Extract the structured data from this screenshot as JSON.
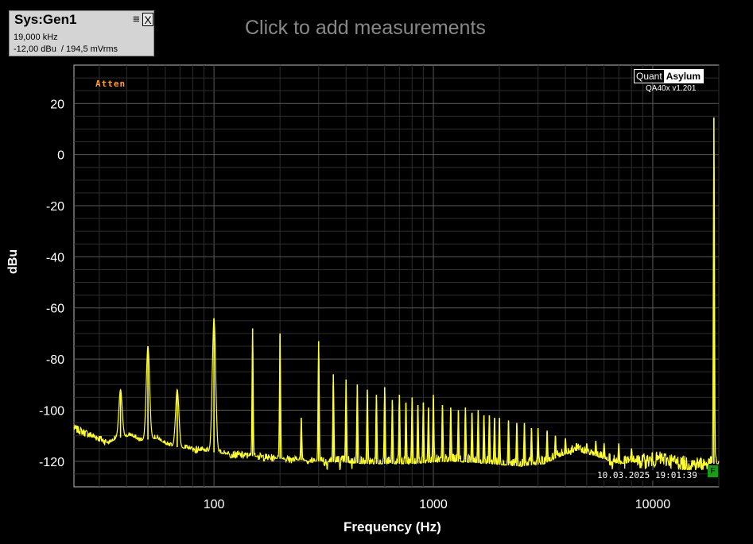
{
  "generator": {
    "title": "Sys:Gen1",
    "menu_glyph": "≡",
    "close_label": "X",
    "frequency": "19,000 kHz",
    "level": "-12,00 dBu  / 194,5 mVrms"
  },
  "measurements_prompt": "Click to add measurements",
  "branding": {
    "left": "Quant",
    "right": "Asylum",
    "version": "QA40x v1.201"
  },
  "atten_label": "Atten",
  "timestamp": "10.03.2025 19:01:39",
  "flag_label": "F",
  "chart_data": {
    "type": "line",
    "xlabel": "Frequency (Hz)",
    "ylabel": "dBu",
    "xscale": "log",
    "xlim": [
      23,
      20000
    ],
    "ylim": [
      -130,
      35
    ],
    "x_ticks": [
      100,
      1000,
      10000
    ],
    "x_tick_labels": [
      "100",
      "1000",
      "10000"
    ],
    "y_ticks": [
      20,
      0,
      -20,
      -40,
      -60,
      -80,
      -100,
      -120
    ],
    "y_tick_labels": [
      "20",
      "0",
      "-20",
      "-40",
      "-60",
      "-80",
      "-100",
      "-120"
    ],
    "grid": true,
    "colors": {
      "trace": "#ffff33",
      "grid": "#5a5a5a",
      "grid_minor": "#2e2e2e",
      "background": "#000000"
    },
    "floor": [
      [
        23,
        -107
      ],
      [
        26,
        -109
      ],
      [
        30,
        -111
      ],
      [
        33,
        -113
      ],
      [
        36,
        -111
      ],
      [
        42,
        -110
      ],
      [
        46,
        -112
      ],
      [
        55,
        -111
      ],
      [
        62,
        -114
      ],
      [
        75,
        -115
      ],
      [
        90,
        -116
      ],
      [
        110,
        -117
      ],
      [
        150,
        -118
      ],
      [
        200,
        -119
      ],
      [
        300,
        -120
      ],
      [
        500,
        -121
      ],
      [
        800,
        -121
      ],
      [
        1200,
        -120
      ],
      [
        1800,
        -121
      ],
      [
        2500,
        -122
      ],
      [
        3200,
        -121
      ],
      [
        3800,
        -118
      ],
      [
        4500,
        -116
      ],
      [
        5500,
        -118
      ],
      [
        7000,
        -121
      ],
      [
        9000,
        -120
      ],
      [
        11000,
        -119
      ],
      [
        14000,
        -121
      ],
      [
        17000,
        -121
      ],
      [
        20000,
        -121
      ]
    ],
    "spikes": [
      [
        37.5,
        -92
      ],
      [
        50,
        -75
      ],
      [
        68,
        -92
      ],
      [
        100,
        -64
      ],
      [
        150,
        -68
      ],
      [
        200,
        -70
      ],
      [
        250,
        -103
      ],
      [
        300,
        -73
      ],
      [
        350,
        -86
      ],
      [
        400,
        -88
      ],
      [
        450,
        -90
      ],
      [
        500,
        -92
      ],
      [
        550,
        -94
      ],
      [
        600,
        -91
      ],
      [
        650,
        -96
      ],
      [
        700,
        -94
      ],
      [
        750,
        -97
      ],
      [
        800,
        -95
      ],
      [
        850,
        -98
      ],
      [
        900,
        -97
      ],
      [
        950,
        -99
      ],
      [
        1000,
        -94
      ],
      [
        1100,
        -98
      ],
      [
        1200,
        -99
      ],
      [
        1300,
        -100
      ],
      [
        1400,
        -99
      ],
      [
        1500,
        -101
      ],
      [
        1600,
        -100
      ],
      [
        1700,
        -102
      ],
      [
        1800,
        -102
      ],
      [
        1900,
        -103
      ],
      [
        2000,
        -103
      ],
      [
        2200,
        -104
      ],
      [
        2400,
        -105
      ],
      [
        2600,
        -105
      ],
      [
        2800,
        -107
      ],
      [
        3000,
        -107
      ],
      [
        3300,
        -108
      ],
      [
        3600,
        -110
      ],
      [
        4000,
        -111
      ],
      [
        4500,
        -113
      ],
      [
        5000,
        -113
      ],
      [
        5500,
        -112
      ],
      [
        6000,
        -113
      ],
      [
        7000,
        -113
      ],
      [
        8000,
        -115
      ],
      [
        19000,
        14.5
      ]
    ]
  }
}
